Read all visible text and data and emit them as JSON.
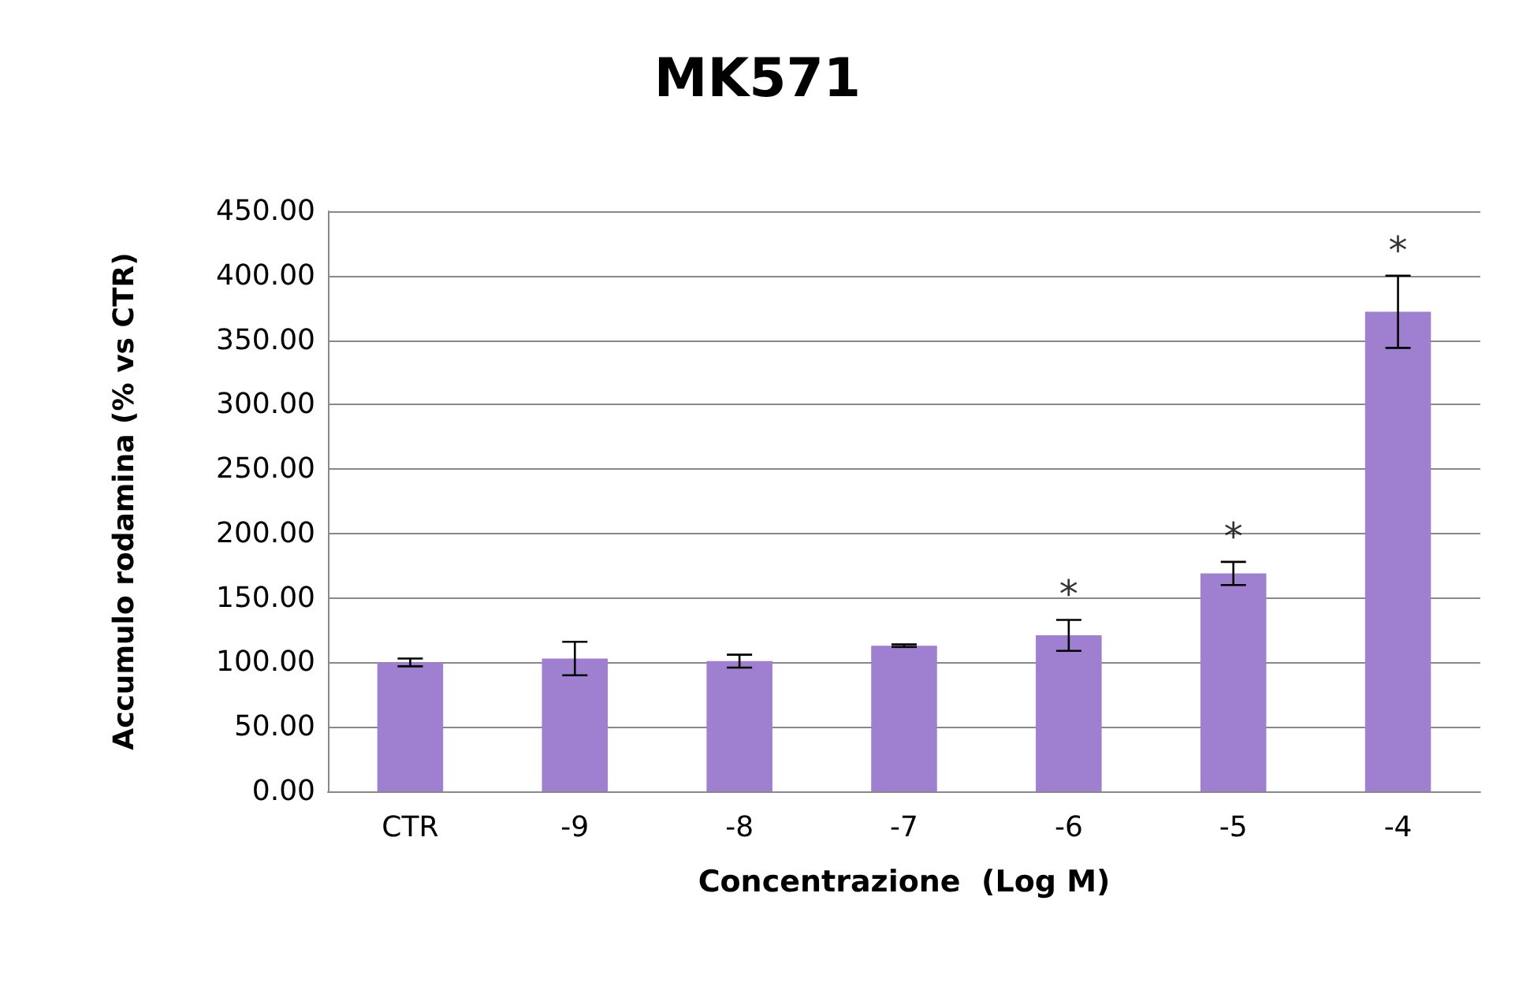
{
  "chart_data": {
    "type": "bar",
    "title": "MK571",
    "xlabel": "Concentrazione  (Log M)",
    "ylabel": "Accumulo rodamina (% vs CTR)",
    "categories": [
      "CTR",
      "-9",
      "-8",
      "-7",
      "-6",
      "-5",
      "-4"
    ],
    "values": [
      100,
      103,
      101,
      113,
      121,
      169,
      372
    ],
    "errors": [
      3,
      13,
      5,
      1,
      12,
      9,
      28
    ],
    "color": "#9f7fcf",
    "ylim": [
      0,
      450
    ],
    "yticks": [
      {
        "value": 0,
        "label": "0.00"
      },
      {
        "value": 50,
        "label": "50.00"
      },
      {
        "value": 100,
        "label": "100.00"
      },
      {
        "value": 150,
        "label": "150.00"
      },
      {
        "value": 200,
        "label": "200.00"
      },
      {
        "value": 250,
        "label": "250.00"
      },
      {
        "value": 300,
        "label": "300.00"
      },
      {
        "value": 350,
        "label": "350.00"
      },
      {
        "value": 400,
        "label": "400.00"
      },
      {
        "value": 450,
        "label": "450.00"
      }
    ],
    "grid": "y",
    "value_labels": [
      null,
      null,
      null,
      null,
      "*",
      "*",
      "*"
    ]
  }
}
